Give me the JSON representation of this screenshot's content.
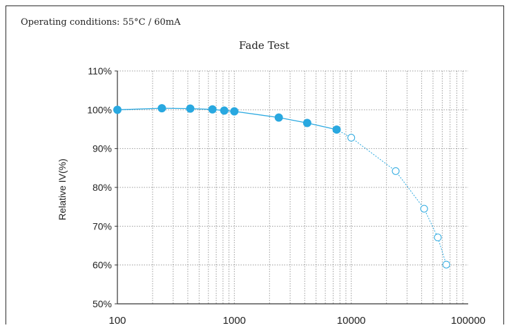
{
  "header": {
    "conditions": "Operating conditions: 55°C / 60mA"
  },
  "chart_data": {
    "type": "scatter",
    "title": "Fade Test",
    "xlabel": "",
    "ylabel": "Relative IV(%)",
    "x_scale": "log",
    "xlim": [
      100,
      100000
    ],
    "ylim": [
      50,
      110
    ],
    "x_tick_labels": [
      "100",
      "1000",
      "10000",
      "100000"
    ],
    "x_ticks": [
      100,
      1000,
      10000,
      100000
    ],
    "y_ticks": [
      50,
      60,
      70,
      80,
      90,
      100,
      110
    ],
    "y_tick_labels": [
      "50%",
      "60%",
      "70%",
      "80%",
      "90%",
      "100%",
      "110%"
    ],
    "grid": true,
    "colors": {
      "series": "#29a8e0",
      "axis": "#333333",
      "grid": "#9a9a9a"
    },
    "series": [
      {
        "marker": "filled",
        "line": "solid",
        "x": [
          100,
          240,
          420,
          650,
          820,
          1000,
          2400,
          4200,
          7500
        ],
        "y": [
          100.0,
          100.4,
          100.3,
          100.1,
          99.8,
          99.6,
          98.0,
          96.6,
          94.9
        ]
      },
      {
        "marker": "open",
        "line": "dotted",
        "x": [
          7500,
          10000,
          24000,
          42000,
          55000,
          65000
        ],
        "y": [
          94.9,
          92.8,
          84.2,
          74.5,
          67.1,
          60.1
        ]
      }
    ]
  }
}
